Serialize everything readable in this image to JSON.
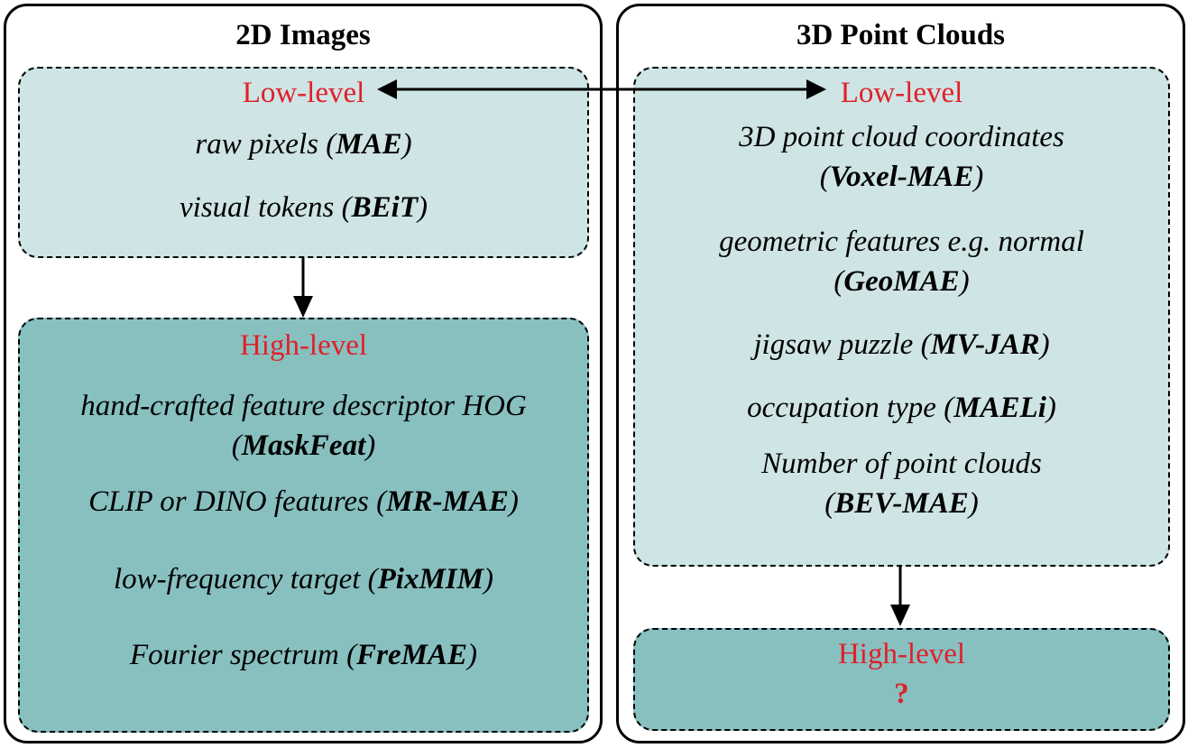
{
  "left": {
    "title": "2D Images",
    "low": {
      "label": "Low-level",
      "items": [
        {
          "text": "raw pixels ",
          "method": "MAE"
        },
        {
          "text": "visual tokens ",
          "method": "BEiT"
        }
      ]
    },
    "high": {
      "label": "High-level",
      "items": [
        {
          "text": "hand-crafted feature descriptor HOG",
          "method": "MaskFeat"
        },
        {
          "text": "CLIP or DINO features ",
          "method": "MR-MAE"
        },
        {
          "text": "low-frequency target ",
          "method": "PixMIM"
        },
        {
          "text": "Fourier spectrum ",
          "method": "FreMAE"
        }
      ]
    }
  },
  "right": {
    "title": "3D Point Clouds",
    "low": {
      "label": "Low-level",
      "items": [
        {
          "text": "3D point cloud coordinates",
          "method": "Voxel-MAE"
        },
        {
          "text": "geometric features e.g. normal",
          "method": "GeoMAE"
        },
        {
          "text": "jigsaw puzzle ",
          "method": "MV-JAR"
        },
        {
          "text": "occupation type ",
          "method": "MAELi"
        },
        {
          "text": "Number of point clouds",
          "method": "BEV-MAE"
        }
      ]
    },
    "high": {
      "label": "High-level",
      "unknown": "?"
    }
  },
  "colors": {
    "low_fill": "#cfe4e4",
    "high_fill": "#88c0c0",
    "level_text": "#e0202a"
  }
}
